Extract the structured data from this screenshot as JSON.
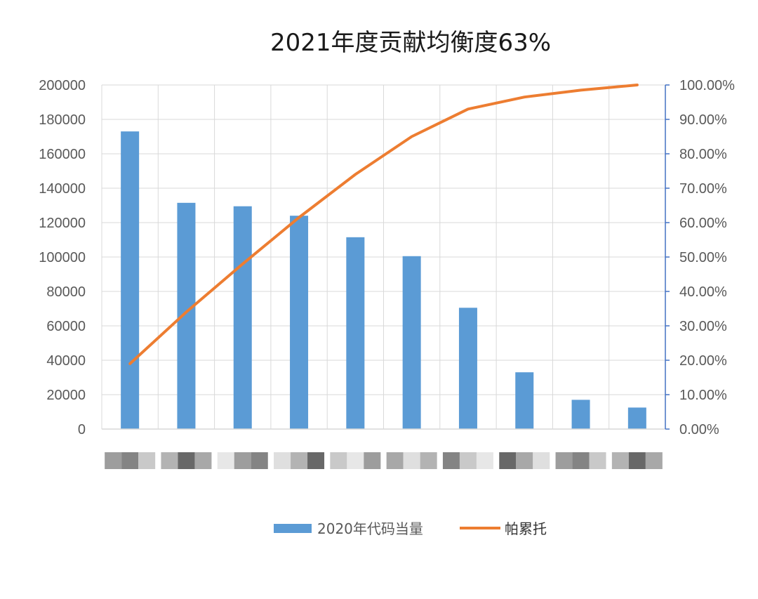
{
  "chart_data": {
    "type": "bar+line",
    "title": "2021年度贡献均衡度63%",
    "categories": [
      "",
      "",
      "",
      "",
      "",
      "",
      "",
      "",
      "",
      ""
    ],
    "series": [
      {
        "name": "2020年代码当量",
        "type": "bar",
        "axis": "left",
        "color": "#5b9bd5",
        "values": [
          173000,
          131500,
          129500,
          124000,
          111500,
          100500,
          70500,
          33000,
          17000,
          12500
        ]
      },
      {
        "name": "帕累托",
        "type": "line",
        "axis": "right",
        "color": "#ed7d31",
        "values": [
          0.19,
          0.34,
          0.48,
          0.615,
          0.74,
          0.85,
          0.93,
          0.965,
          0.985,
          1.0
        ]
      }
    ],
    "ylim_left": [
      0,
      200000
    ],
    "yticks_left": [
      "0",
      "20000",
      "40000",
      "60000",
      "80000",
      "100000",
      "120000",
      "140000",
      "160000",
      "180000",
      "200000"
    ],
    "ylim_right": [
      0,
      1
    ],
    "yticks_right": [
      "0.00%",
      "10.00%",
      "20.00%",
      "30.00%",
      "40.00%",
      "50.00%",
      "60.00%",
      "70.00%",
      "80.00%",
      "90.00%",
      "100.00%"
    ],
    "grid": true,
    "legend_position": "bottom",
    "colors": {
      "grid": "#d9d9d9",
      "right_axis": "#4472c4"
    }
  }
}
